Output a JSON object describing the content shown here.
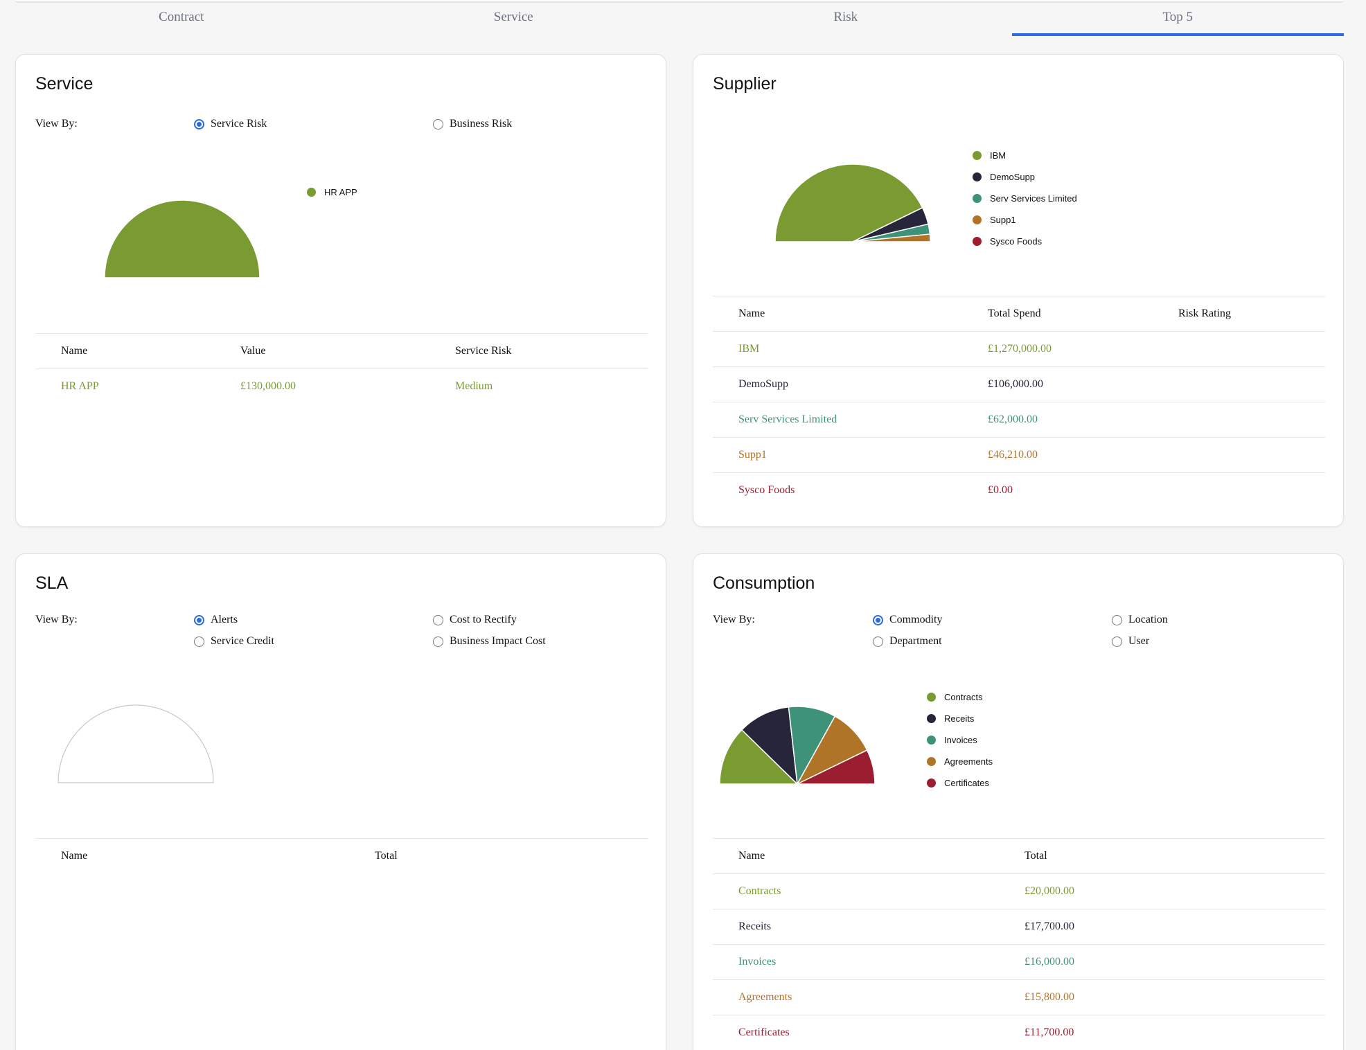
{
  "tabs": [
    {
      "label": "Contract",
      "active": false
    },
    {
      "label": "Service",
      "active": false
    },
    {
      "label": "Risk",
      "active": false
    },
    {
      "label": "Top 5",
      "active": true
    }
  ],
  "colors": {
    "green": "#7a9a32",
    "dark": "#27253a",
    "teal": "#3d9277",
    "orange": "#b07428",
    "red": "#9b1e30",
    "accent": "#2f6ae4"
  },
  "service": {
    "title": "Service",
    "view_by_label": "View By:",
    "options": [
      {
        "label": "Service Risk",
        "checked": true
      },
      {
        "label": "Business Risk",
        "checked": false
      }
    ],
    "legend": [
      {
        "label": "HR APP",
        "color": "#7a9a32"
      }
    ],
    "table": {
      "headers": [
        "Name",
        "Value",
        "Service Risk"
      ],
      "rows": [
        {
          "name": "HR APP",
          "value": "£130,000.00",
          "risk": "Medium",
          "color": "#7a9a32"
        }
      ]
    }
  },
  "supplier": {
    "title": "Supplier",
    "legend": [
      {
        "label": "IBM",
        "color": "#7a9a32"
      },
      {
        "label": "DemoSupp",
        "color": "#27253a"
      },
      {
        "label": "Serv Services Limited",
        "color": "#3d9277"
      },
      {
        "label": "Supp1",
        "color": "#b07428"
      },
      {
        "label": "Sysco Foods",
        "color": "#9b1e30"
      }
    ],
    "table": {
      "headers": [
        "Name",
        "Total Spend",
        "Risk Rating"
      ],
      "rows": [
        {
          "name": "IBM",
          "spend": "£1,270,000.00",
          "rating": "",
          "color": "#7a9a32"
        },
        {
          "name": "DemoSupp",
          "spend": "£106,000.00",
          "rating": "",
          "color": "#27253a"
        },
        {
          "name": "Serv Services Limited",
          "spend": "£62,000.00",
          "rating": "",
          "color": "#3d9277"
        },
        {
          "name": "Supp1",
          "spend": "£46,210.00",
          "rating": "",
          "color": "#b07428"
        },
        {
          "name": "Sysco Foods",
          "spend": "£0.00",
          "rating": "",
          "color": "#9b1e30"
        }
      ]
    }
  },
  "sla": {
    "title": "SLA",
    "view_by_label": "View By:",
    "options": [
      {
        "label": "Alerts",
        "checked": true
      },
      {
        "label": "Cost to Rectify",
        "checked": false
      },
      {
        "label": "Service Credit",
        "checked": false
      },
      {
        "label": "Business Impact Cost",
        "checked": false
      }
    ],
    "table": {
      "headers": [
        "Name",
        "Total"
      ],
      "rows": []
    }
  },
  "consumption": {
    "title": "Consumption",
    "view_by_label": "View By:",
    "options": [
      {
        "label": "Commodity",
        "checked": true
      },
      {
        "label": "Location",
        "checked": false
      },
      {
        "label": "Department",
        "checked": false
      },
      {
        "label": "User",
        "checked": false
      }
    ],
    "legend": [
      {
        "label": "Contracts",
        "color": "#7a9a32"
      },
      {
        "label": "Receits",
        "color": "#27253a"
      },
      {
        "label": "Invoices",
        "color": "#3d9277"
      },
      {
        "label": "Agreements",
        "color": "#b07428"
      },
      {
        "label": "Certificates",
        "color": "#9b1e30"
      }
    ],
    "table": {
      "headers": [
        "Name",
        "Total"
      ],
      "rows": [
        {
          "name": "Contracts",
          "total": "£20,000.00",
          "color": "#7a9a32"
        },
        {
          "name": "Receits",
          "total": "£17,700.00",
          "color": "#27253a"
        },
        {
          "name": "Invoices",
          "total": "£16,000.00",
          "color": "#3d9277"
        },
        {
          "name": "Agreements",
          "total": "£15,800.00",
          "color": "#b07428"
        },
        {
          "name": "Certificates",
          "total": "£11,700.00",
          "color": "#9b1e30"
        }
      ]
    }
  },
  "chart_data": [
    {
      "type": "pie",
      "variant": "half-donut",
      "panel": "service",
      "categories": [
        "HR APP"
      ],
      "values": [
        130000
      ],
      "colors": [
        "#7a9a32"
      ]
    },
    {
      "type": "pie",
      "variant": "half-donut",
      "panel": "supplier",
      "categories": [
        "IBM",
        "DemoSupp",
        "Serv Services Limited",
        "Supp1",
        "Sysco Foods"
      ],
      "values": [
        1270000,
        106000,
        62000,
        46210,
        0
      ],
      "colors": [
        "#7a9a32",
        "#27253a",
        "#3d9277",
        "#b07428",
        "#9b1e30"
      ]
    },
    {
      "type": "pie",
      "variant": "half-donut",
      "panel": "sla",
      "categories": [],
      "values": [],
      "colors": []
    },
    {
      "type": "pie",
      "variant": "half-donut",
      "panel": "consumption",
      "categories": [
        "Contracts",
        "Receits",
        "Invoices",
        "Agreements",
        "Certificates"
      ],
      "values": [
        20000,
        17700,
        16000,
        15800,
        11700
      ],
      "colors": [
        "#7a9a32",
        "#27253a",
        "#3d9277",
        "#b07428",
        "#9b1e30"
      ]
    }
  ]
}
